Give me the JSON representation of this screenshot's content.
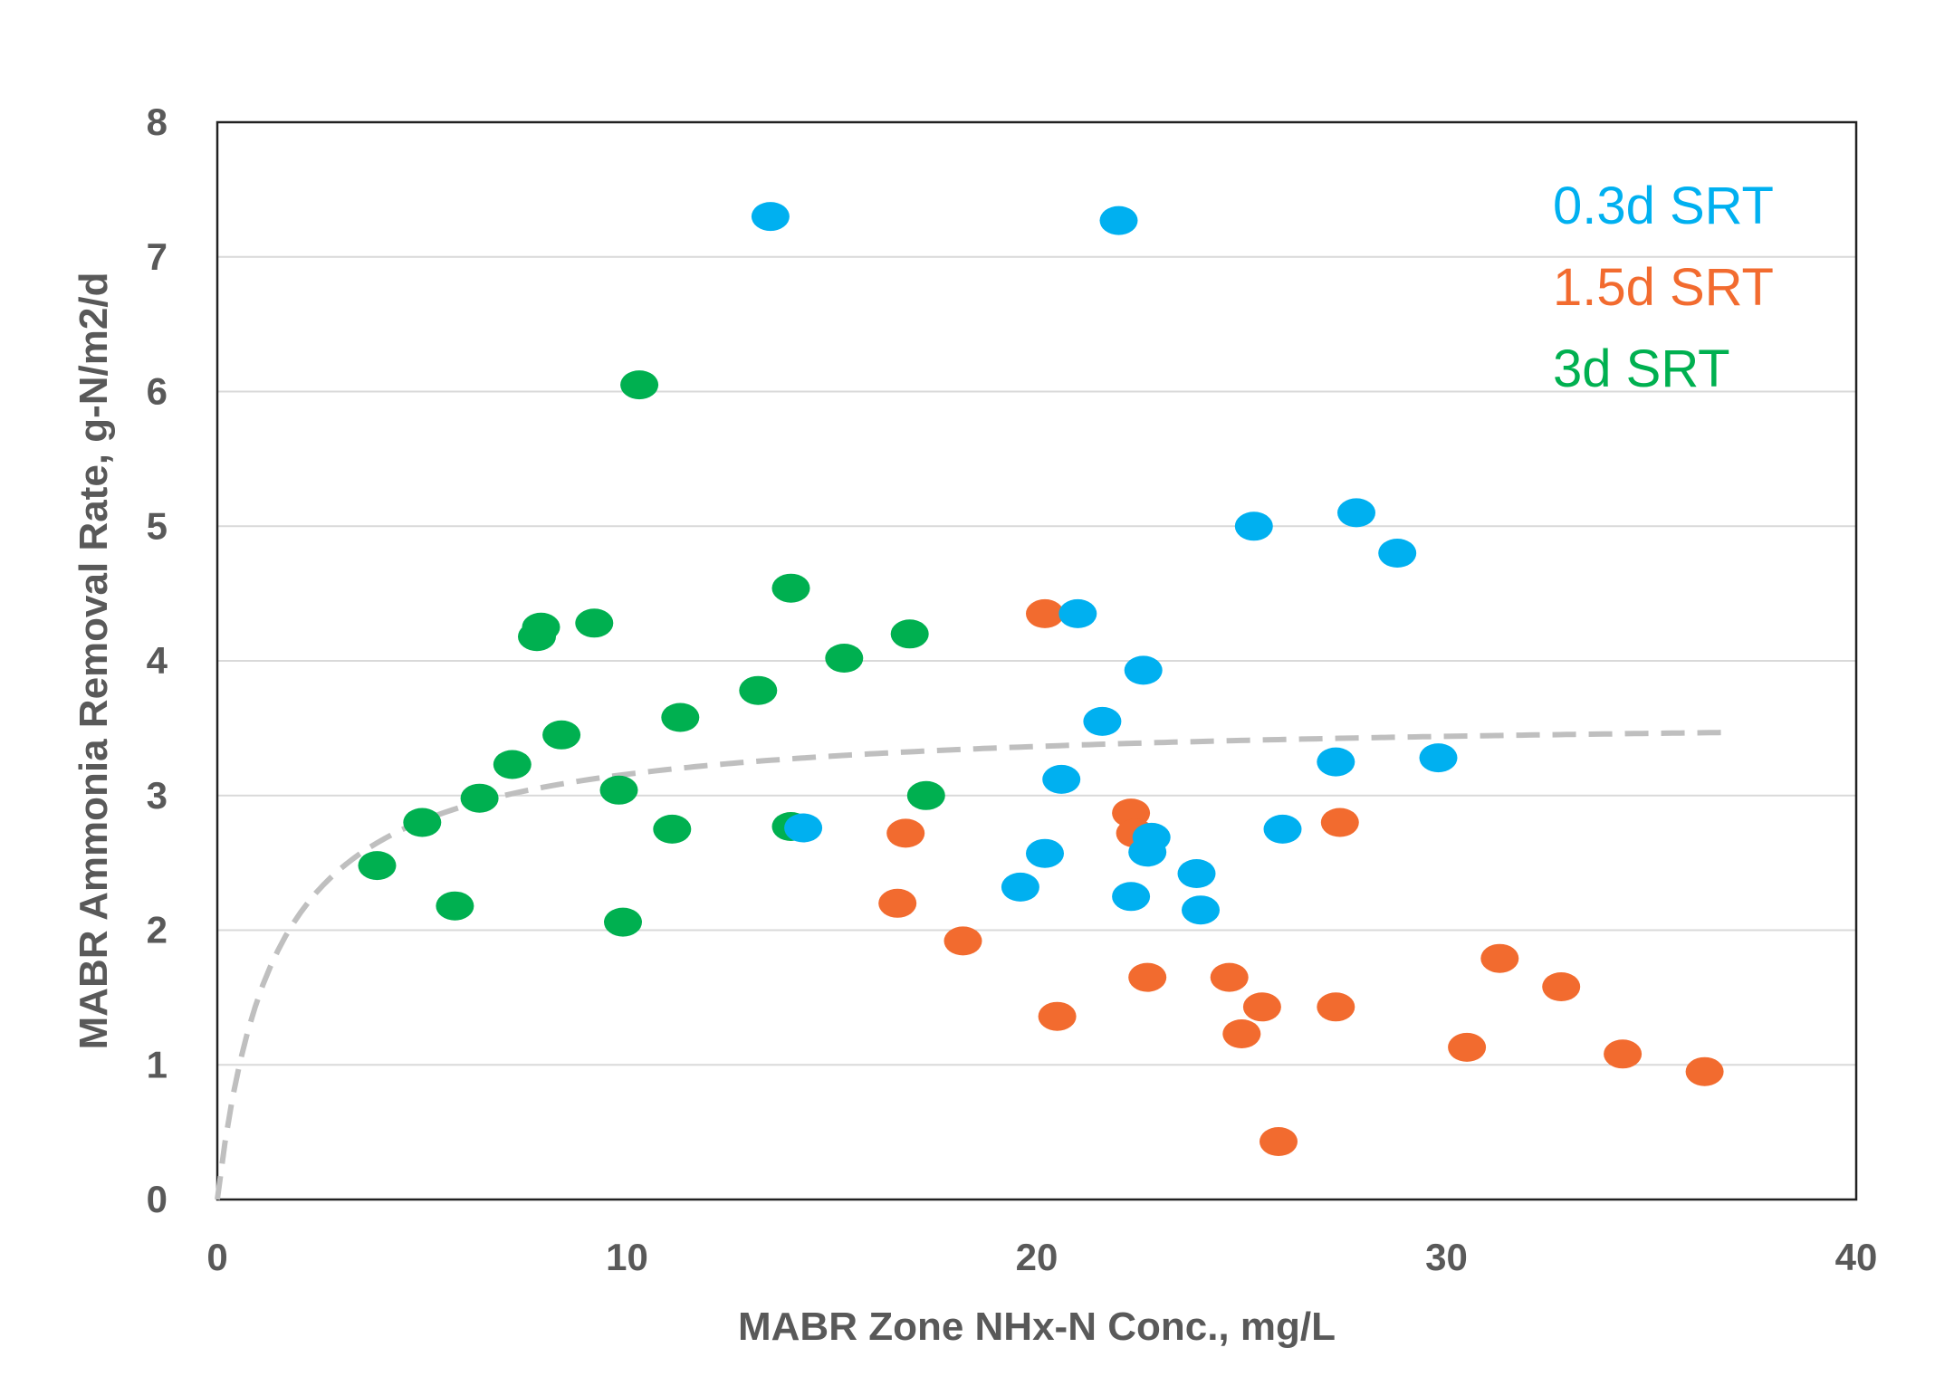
{
  "chart_data": {
    "type": "scatter",
    "xlabel": "MABR Zone NHx-N Conc., mg/L",
    "ylabel": "MABR Ammonia Removal Rate, g-N/m2/d",
    "xlim": [
      0,
      40
    ],
    "ylim": [
      0,
      8
    ],
    "x_ticks": [
      "0",
      "10",
      "20",
      "30",
      "40"
    ],
    "y_ticks": [
      "0",
      "1",
      "2",
      "3",
      "4",
      "5",
      "6",
      "7",
      "8"
    ],
    "grid": "horizontal",
    "legend_position": "top-right",
    "series": [
      {
        "name": "0.3d SRT",
        "color": "#00b0f0",
        "points": [
          [
            13.5,
            7.3
          ],
          [
            22.0,
            7.27
          ],
          [
            25.3,
            5.0
          ],
          [
            27.8,
            5.1
          ],
          [
            28.8,
            4.8
          ],
          [
            21.0,
            4.35
          ],
          [
            22.6,
            3.93
          ],
          [
            21.6,
            3.55
          ],
          [
            20.6,
            3.12
          ],
          [
            27.3,
            3.25
          ],
          [
            29.8,
            3.28
          ],
          [
            14.3,
            2.76
          ],
          [
            26.0,
            2.75
          ],
          [
            22.8,
            2.69
          ],
          [
            22.7,
            2.58
          ],
          [
            20.2,
            2.57
          ],
          [
            23.9,
            2.42
          ],
          [
            19.6,
            2.32
          ],
          [
            22.3,
            2.25
          ],
          [
            24.0,
            2.15
          ]
        ]
      },
      {
        "name": "1.5d SRT",
        "color": "#f26b2f",
        "points": [
          [
            20.2,
            4.35
          ],
          [
            22.3,
            2.87
          ],
          [
            22.4,
            2.72
          ],
          [
            16.8,
            2.72
          ],
          [
            27.4,
            2.8
          ],
          [
            16.6,
            2.2
          ],
          [
            18.2,
            1.92
          ],
          [
            22.7,
            1.65
          ],
          [
            24.7,
            1.65
          ],
          [
            25.5,
            1.43
          ],
          [
            25.0,
            1.23
          ],
          [
            20.5,
            1.36
          ],
          [
            27.3,
            1.43
          ],
          [
            31.3,
            1.79
          ],
          [
            32.8,
            1.58
          ],
          [
            30.5,
            1.13
          ],
          [
            34.3,
            1.08
          ],
          [
            36.3,
            0.95
          ],
          [
            25.9,
            0.43
          ]
        ]
      },
      {
        "name": "3d SRT",
        "color": "#00b050",
        "points": [
          [
            10.3,
            6.05
          ],
          [
            14.0,
            4.54
          ],
          [
            7.9,
            4.25
          ],
          [
            7.8,
            4.18
          ],
          [
            9.2,
            4.28
          ],
          [
            16.9,
            4.2
          ],
          [
            15.3,
            4.02
          ],
          [
            13.2,
            3.78
          ],
          [
            11.3,
            3.58
          ],
          [
            8.4,
            3.45
          ],
          [
            7.2,
            3.23
          ],
          [
            6.4,
            2.98
          ],
          [
            5.0,
            2.8
          ],
          [
            3.9,
            2.48
          ],
          [
            9.8,
            3.04
          ],
          [
            14.0,
            2.77
          ],
          [
            11.1,
            2.75
          ],
          [
            17.3,
            3.0
          ],
          [
            5.8,
            2.18
          ],
          [
            9.9,
            2.06
          ]
        ]
      }
    ],
    "trendline": {
      "style": "dashed",
      "color": "#bfbfbf",
      "equation": "y = 3.6 * x / (1.4 + x)",
      "x_range": [
        0,
        37
      ]
    }
  }
}
